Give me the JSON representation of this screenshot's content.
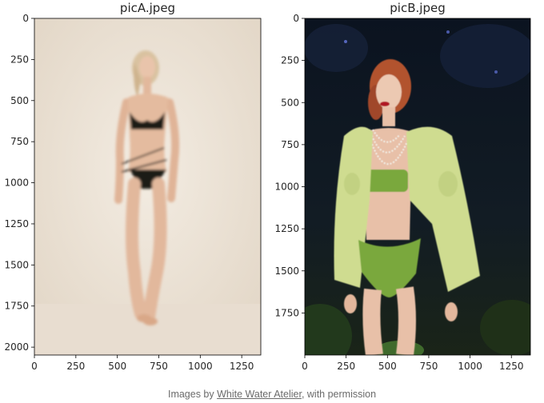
{
  "chart_data": [
    {
      "type": "image",
      "title": "picA.jpeg",
      "xlim": [
        0,
        1365
      ],
      "ylim": [
        2048,
        0
      ],
      "xticks": [
        0,
        250,
        500,
        750,
        1000,
        1250
      ],
      "yticks": [
        0,
        250,
        500,
        750,
        1000,
        1250,
        1500,
        1750,
        2000
      ],
      "content": "figure-light-background",
      "colors": {
        "background": "#ede4d8",
        "garment": "#1c1a18",
        "skin": "#e2b89c",
        "hair": "#d9c2a0"
      }
    },
    {
      "type": "image",
      "title": "picB.jpeg",
      "xlim": [
        0,
        1365
      ],
      "ylim": [
        2000,
        0
      ],
      "xticks": [
        0,
        250,
        500,
        750,
        1000,
        1250
      ],
      "yticks": [
        0,
        250,
        500,
        750,
        1000,
        1250,
        1500,
        1750
      ],
      "content": "figure-dark-foliage-background",
      "colors": {
        "background": "#0e1622",
        "jacket": "#cfdc90",
        "bikini": "#7aa83c",
        "skin": "#e8c0a8",
        "hair": "#b2532e"
      }
    }
  ],
  "caption": {
    "prefix": "Images by ",
    "link": "White Water Atelier",
    "suffix": ", with permission"
  }
}
